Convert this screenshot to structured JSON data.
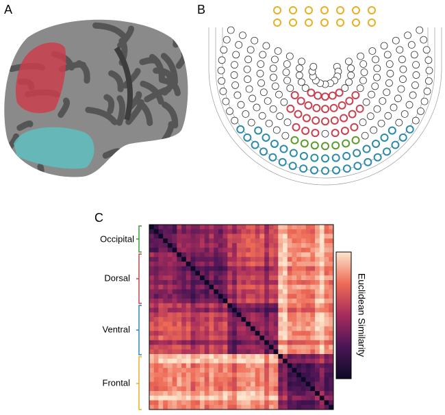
{
  "panels": {
    "a": {
      "label": "A"
    },
    "b": {
      "label": "B"
    },
    "c": {
      "label": "C",
      "groups": [
        "Occipital",
        "Dorsal",
        "Ventral",
        "Frontal"
      ],
      "colorbar_label": "Euclidean Similarity"
    }
  }
}
